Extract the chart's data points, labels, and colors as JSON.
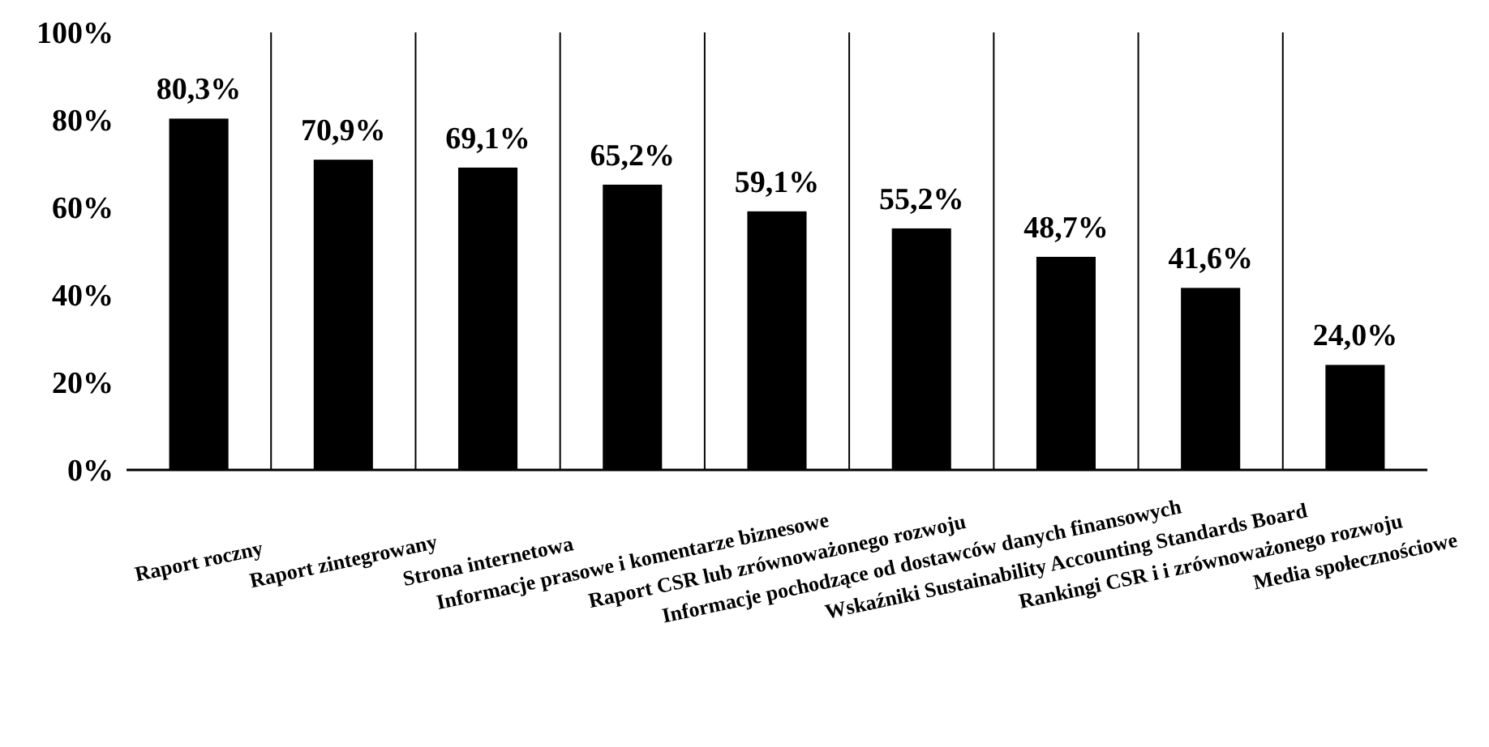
{
  "chart_data": {
    "type": "bar",
    "categories": [
      "Raport roczny",
      "Raport zintegrowany",
      "Strona internetowa",
      "Informacje prasowe i komentarze biznesowe",
      "Raport CSR lub zrównoważonego rozwoju",
      "Informacje pochodzące od dostawców danych finansowych",
      "Wskaźniki Sustainability Accounting Standards Board",
      "Rankingi CSR i i zrównoważonego rozwoju",
      "Media społecznościowe"
    ],
    "values": [
      80.3,
      70.9,
      69.1,
      65.2,
      59.1,
      55.2,
      48.7,
      41.6,
      24.0
    ],
    "value_labels": [
      "80,3%",
      "70,9%",
      "69,1%",
      "65,2%",
      "59,1%",
      "55,2%",
      "48,7%",
      "41,6%",
      "24,0%"
    ],
    "color": "#000000",
    "ylim": [
      0,
      100
    ],
    "yticks": [
      {
        "value": 0,
        "label": "0%"
      },
      {
        "value": 20,
        "label": "20%"
      },
      {
        "value": 40,
        "label": "40%"
      },
      {
        "value": 60,
        "label": "60%"
      },
      {
        "value": 80,
        "label": "80%"
      },
      {
        "value": 100,
        "label": "100%"
      }
    ],
    "grid": "x"
  }
}
